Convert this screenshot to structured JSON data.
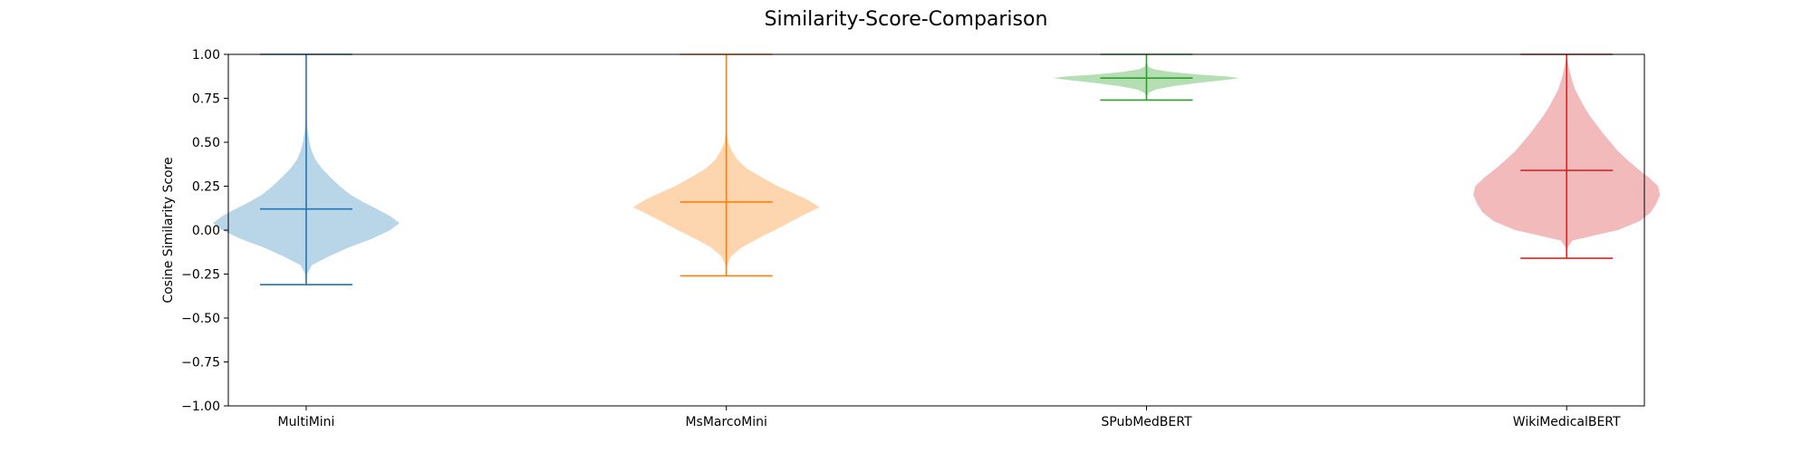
{
  "chart_data": {
    "type": "violin",
    "title": "Similarity-Score-Comparison",
    "xlabel": "",
    "ylabel": "Cosine Similarity Score",
    "ylim": [
      -1.0,
      1.0
    ],
    "yticks": [
      -1.0,
      -0.75,
      -0.5,
      -0.25,
      0.0,
      0.25,
      0.5,
      0.75,
      1.0
    ],
    "ytick_labels": [
      "−1.00",
      "−0.75",
      "−0.50",
      "−0.25",
      "0.00",
      "0.25",
      "0.50",
      "0.75",
      "1.00"
    ],
    "grid": false,
    "categories": [
      "MultiMini",
      "MsMarcoMini",
      "SPubMedBERT",
      "WikiMedicalBERT"
    ],
    "series": [
      {
        "category": "MultiMini",
        "color": "#1f77b4",
        "fill": "#b9d5e8",
        "min": -0.31,
        "max": 1.0,
        "median": 0.12,
        "density": [
          [
            -0.31,
            0
          ],
          [
            -0.25,
            0.01
          ],
          [
            -0.2,
            0.06
          ],
          [
            -0.15,
            0.24
          ],
          [
            -0.1,
            0.45
          ],
          [
            -0.05,
            0.7
          ],
          [
            0.0,
            0.9
          ],
          [
            0.04,
            1.0
          ],
          [
            0.08,
            0.9
          ],
          [
            0.12,
            0.76
          ],
          [
            0.16,
            0.61
          ],
          [
            0.2,
            0.48
          ],
          [
            0.25,
            0.36
          ],
          [
            0.3,
            0.26
          ],
          [
            0.35,
            0.17
          ],
          [
            0.4,
            0.1
          ],
          [
            0.45,
            0.06
          ],
          [
            0.5,
            0.035
          ],
          [
            0.55,
            0.02
          ],
          [
            0.6,
            0.008
          ],
          [
            0.65,
            0.003
          ],
          [
            0.7,
            0.001
          ],
          [
            0.75,
            0.0005
          ],
          [
            0.8,
            0
          ],
          [
            0.9,
            0
          ],
          [
            1.0,
            0
          ]
        ]
      },
      {
        "category": "MsMarcoMini",
        "color": "#ff7f0e",
        "fill": "#fdd6b0",
        "min": -0.26,
        "max": 1.0,
        "median": 0.16,
        "density": [
          [
            -0.26,
            0
          ],
          [
            -0.2,
            0.01
          ],
          [
            -0.15,
            0.05
          ],
          [
            -0.1,
            0.16
          ],
          [
            -0.05,
            0.33
          ],
          [
            0.0,
            0.52
          ],
          [
            0.05,
            0.7
          ],
          [
            0.1,
            0.88
          ],
          [
            0.13,
            1.0
          ],
          [
            0.17,
            0.88
          ],
          [
            0.21,
            0.72
          ],
          [
            0.25,
            0.55
          ],
          [
            0.3,
            0.38
          ],
          [
            0.35,
            0.22
          ],
          [
            0.4,
            0.12
          ],
          [
            0.45,
            0.06
          ],
          [
            0.5,
            0.02
          ],
          [
            0.55,
            0.008
          ],
          [
            0.6,
            0.003
          ],
          [
            0.7,
            0.001
          ],
          [
            0.8,
            0
          ],
          [
            0.9,
            0
          ],
          [
            1.0,
            0
          ]
        ]
      },
      {
        "category": "SPubMedBERT",
        "color": "#2ca02c",
        "fill": "#b5deb4",
        "min": 0.74,
        "max": 1.0,
        "median": 0.865,
        "density": [
          [
            0.74,
            0
          ],
          [
            0.76,
            0.004
          ],
          [
            0.78,
            0.02
          ],
          [
            0.8,
            0.1
          ],
          [
            0.82,
            0.3
          ],
          [
            0.84,
            0.6
          ],
          [
            0.855,
            0.85
          ],
          [
            0.865,
            1.0
          ],
          [
            0.875,
            0.85
          ],
          [
            0.885,
            0.55
          ],
          [
            0.9,
            0.26
          ],
          [
            0.915,
            0.08
          ],
          [
            0.93,
            0.02
          ],
          [
            0.95,
            0.005
          ],
          [
            0.97,
            0.001
          ],
          [
            1.0,
            0
          ]
        ]
      },
      {
        "category": "WikiMedicalBERT",
        "color": "#d62728",
        "fill": "#f2babb",
        "min": -0.16,
        "max": 1.0,
        "median": 0.34,
        "density": [
          [
            -0.16,
            0
          ],
          [
            -0.1,
            0.01
          ],
          [
            -0.06,
            0.06
          ],
          [
            -0.03,
            0.3
          ],
          [
            0.0,
            0.55
          ],
          [
            0.05,
            0.78
          ],
          [
            0.1,
            0.9
          ],
          [
            0.15,
            0.96
          ],
          [
            0.2,
            1.0
          ],
          [
            0.25,
            0.98
          ],
          [
            0.3,
            0.88
          ],
          [
            0.35,
            0.76
          ],
          [
            0.4,
            0.65
          ],
          [
            0.45,
            0.55
          ],
          [
            0.5,
            0.47
          ],
          [
            0.55,
            0.39
          ],
          [
            0.6,
            0.32
          ],
          [
            0.65,
            0.25
          ],
          [
            0.7,
            0.19
          ],
          [
            0.75,
            0.14
          ],
          [
            0.8,
            0.09
          ],
          [
            0.85,
            0.06
          ],
          [
            0.9,
            0.035
          ],
          [
            0.95,
            0.015
          ],
          [
            0.98,
            0.006
          ],
          [
            1.0,
            0
          ]
        ]
      }
    ]
  }
}
